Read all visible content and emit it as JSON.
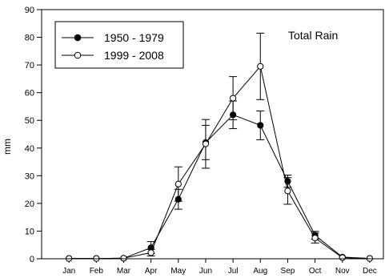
{
  "chart_data": {
    "type": "line",
    "annotation": "Total Rain",
    "ylabel": "mm",
    "ylim": [
      0,
      90
    ],
    "yticks": [
      0,
      10,
      20,
      30,
      40,
      50,
      60,
      70,
      80,
      90
    ],
    "categories": [
      "Jan",
      "Feb",
      "Mar",
      "Apr",
      "May",
      "Jun",
      "Jul",
      "Aug",
      "Sep",
      "Oct",
      "Nov",
      "Dec"
    ],
    "grid": false,
    "legend_position": "top-left",
    "series": [
      {
        "name": "1950 - 1979",
        "marker": "filled-circle",
        "values": [
          0.1,
          0.1,
          0.2,
          4.0,
          21.5,
          42.0,
          52.0,
          48.2,
          28.0,
          8.5,
          0.6,
          0.1
        ],
        "error": [
          0.0,
          0.0,
          0.0,
          2.2,
          3.6,
          6.2,
          5.0,
          5.2,
          2.2,
          1.4,
          0.0,
          0.0
        ]
      },
      {
        "name": "1999 - 2008",
        "marker": "open-circle",
        "values": [
          0.1,
          0.1,
          0.2,
          2.2,
          27.0,
          41.5,
          58.0,
          69.5,
          24.5,
          7.5,
          0.4,
          0.1
        ],
        "error": [
          0.0,
          0.0,
          0.0,
          1.2,
          6.2,
          8.8,
          7.8,
          12.0,
          4.8,
          1.8,
          0.0,
          0.0
        ]
      }
    ]
  }
}
